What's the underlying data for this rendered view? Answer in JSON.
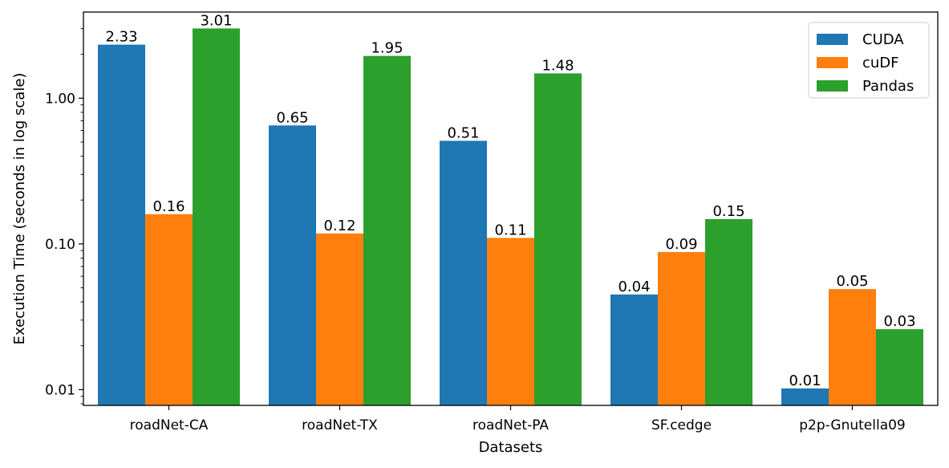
{
  "chart_data": {
    "type": "bar",
    "categories": [
      "roadNet-CA",
      "roadNet-TX",
      "roadNet-PA",
      "SF.cedge",
      "p2p-Gnutella09"
    ],
    "series": [
      {
        "name": "CUDA",
        "color": "#1f77b4",
        "values": [
          2.33,
          0.65,
          0.51,
          0.045,
          0.0102
        ],
        "labels": [
          "2.33",
          "0.65",
          "0.51",
          "0.04",
          "0.01"
        ]
      },
      {
        "name": "cuDF",
        "color": "#ff7f0e",
        "values": [
          0.16,
          0.118,
          0.11,
          0.088,
          0.049
        ],
        "labels": [
          "0.16",
          "0.12",
          "0.11",
          "0.09",
          "0.05"
        ]
      },
      {
        "name": "Pandas",
        "color": "#2ca02c",
        "values": [
          3.01,
          1.95,
          1.48,
          0.148,
          0.026
        ],
        "labels": [
          "3.01",
          "1.95",
          "1.48",
          "0.15",
          "0.03"
        ]
      }
    ],
    "xlabel": "Datasets",
    "ylabel": "Execution Time (seconds in log scale)",
    "yscale": "log",
    "ylim": [
      0.0078,
      3.9
    ],
    "yticks": [
      {
        "value": 0.01,
        "label": "0.01"
      },
      {
        "value": 0.1,
        "label": "0.10"
      },
      {
        "value": 1,
        "label": "1.00"
      }
    ],
    "legend_position": "top-right",
    "grid": false
  }
}
